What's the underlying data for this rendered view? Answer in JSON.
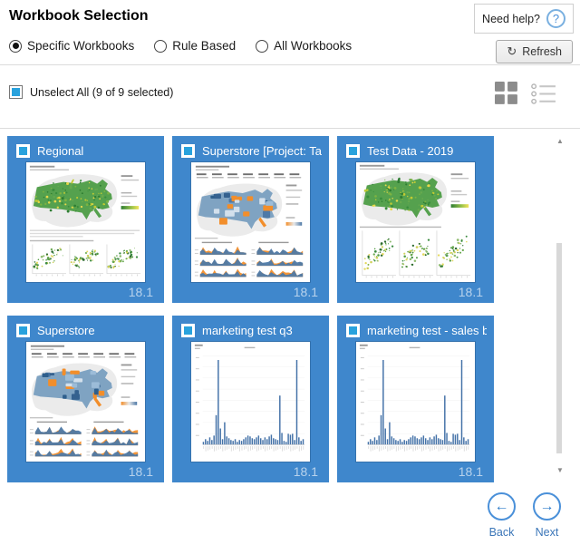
{
  "header": {
    "title": "Workbook Selection",
    "need_help_label": "Need help?",
    "help_icon": "?"
  },
  "filter": {
    "radios": [
      {
        "label": "Specific Workbooks",
        "selected": true
      },
      {
        "label": "Rule Based",
        "selected": false
      },
      {
        "label": "All Workbooks",
        "selected": false
      }
    ],
    "refresh_label": "Refresh",
    "refresh_icon": "↻"
  },
  "selection": {
    "toggle_label": "Unselect All (9 of 9 selected)",
    "checked": true
  },
  "view_toggles": {
    "grid_active": true,
    "list_active": false
  },
  "workbooks": [
    {
      "title": "Regional",
      "version": "18.1",
      "selected": true,
      "thumbnail": "green-map-scatter-row"
    },
    {
      "title": "Superstore [Project: Tabl...",
      "version": "18.1",
      "selected": true,
      "thumbnail": "superstore-dashboard"
    },
    {
      "title": "Test Data - 2019",
      "version": "18.1",
      "selected": true,
      "thumbnail": "green-map-scatter-large"
    },
    {
      "title": "Superstore",
      "version": "18.1",
      "selected": true,
      "thumbnail": "superstore-dashboard"
    },
    {
      "title": "marketing test q3",
      "version": "18.1",
      "selected": true,
      "thumbnail": "bar-chart"
    },
    {
      "title": "marketing test - sales b...",
      "version": "18.1",
      "selected": true,
      "thumbnail": "bar-chart"
    }
  ],
  "thumb_specs": {
    "bar_values": [
      3,
      6,
      4,
      8,
      5,
      10,
      33,
      95,
      18,
      6,
      25,
      9,
      7,
      5,
      4,
      6,
      3,
      5,
      4,
      6,
      8,
      10,
      9,
      7,
      6,
      8,
      10,
      7,
      5,
      8,
      6,
      9,
      11,
      7,
      6,
      5,
      55,
      13,
      4,
      3,
      12,
      11,
      12,
      5,
      95,
      8,
      4,
      6
    ]
  },
  "pagination": {
    "back_label": "Back",
    "next_label": "Next"
  },
  "colors": {
    "card_blue": "#3f87cc",
    "checkbox_blue": "#29a2dd",
    "accent_blue": "#4a90d9",
    "link_blue": "#3b76b8",
    "version_text": "rgba(255,255,255,0.62)"
  }
}
